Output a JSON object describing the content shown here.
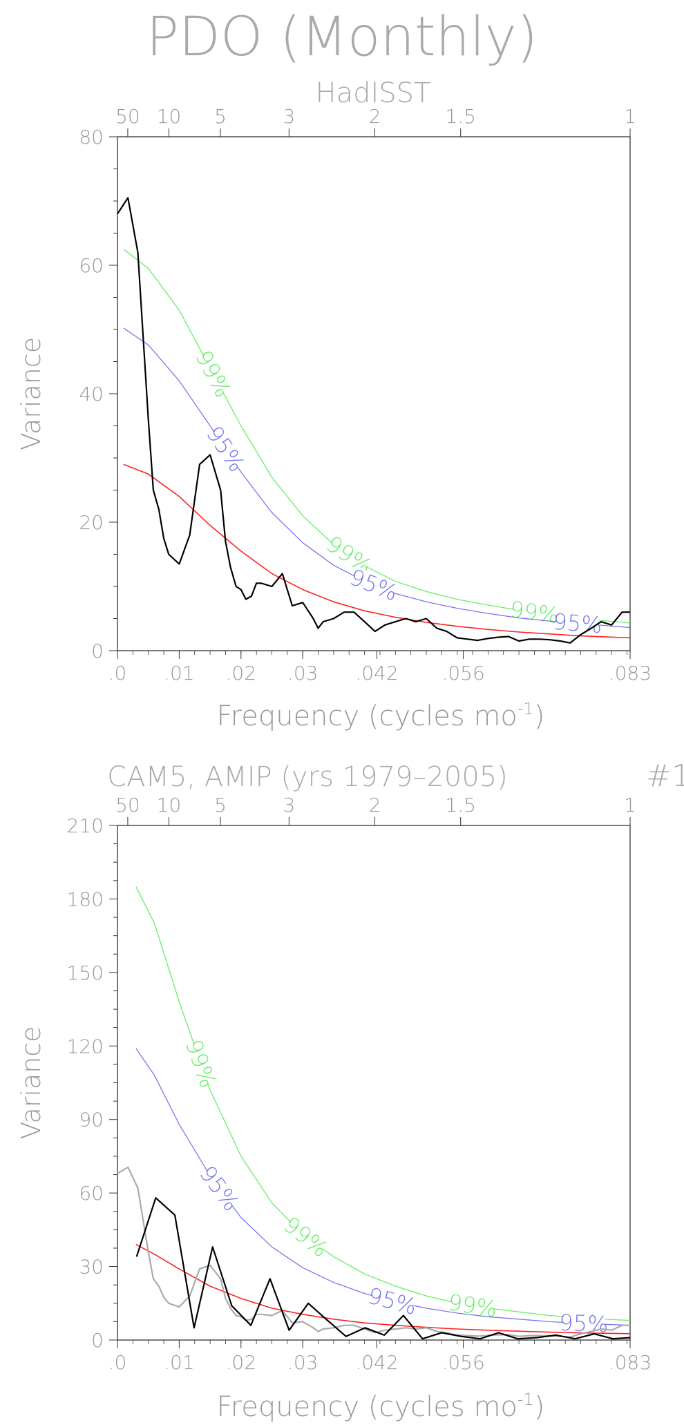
{
  "header": {
    "title": "PDO (Monthly)"
  },
  "colors": {
    "sig99": "#66ee66",
    "sig95": "#7777ee",
    "red_noise": "#ff2222",
    "obs": "#000000",
    "obs_ref": "#aaaaaa",
    "axis": "#999999"
  },
  "chart_data": [
    {
      "type": "line",
      "title": "HadISST",
      "suffix": "",
      "xlabel": "Frequency (cycles mo",
      "xlabel_sup": "-1",
      "xlabel_close": ")",
      "ylabel": "Variance",
      "xlim": [
        0,
        0.083
      ],
      "ylim": [
        0,
        80
      ],
      "x_tick_values": [
        0,
        0.01,
        0.02,
        0.03,
        0.042,
        0.056,
        0.083
      ],
      "x_tick_labels": [
        ".0",
        ".01",
        ".02",
        ".03",
        ".042",
        ".056",
        ".083"
      ],
      "top_tick_values": [
        0.00167,
        0.00833,
        0.01667,
        0.02778,
        0.04167,
        0.05556,
        0.08333
      ],
      "top_tick_labels": [
        "50",
        "10",
        "5",
        "3",
        "2",
        "1.5",
        "1"
      ],
      "y_tick_values": [
        0,
        20,
        40,
        60,
        80
      ],
      "y_tick_labels": [
        "0",
        "20",
        "40",
        "60",
        "80"
      ],
      "series": [
        {
          "role": "sig99",
          "labels": [
            "99%",
            "99%",
            "99%"
          ],
          "x": [
            0.001,
            0.005,
            0.01,
            0.015,
            0.02,
            0.025,
            0.03,
            0.035,
            0.04,
            0.045,
            0.05,
            0.055,
            0.06,
            0.065,
            0.07,
            0.075,
            0.083
          ],
          "y": [
            62.5,
            59.5,
            53.0,
            44.0,
            35.0,
            27.0,
            21.0,
            16.5,
            13.2,
            10.8,
            9.2,
            8.0,
            7.1,
            6.3,
            5.6,
            5.0,
            4.3
          ]
        },
        {
          "role": "sig95",
          "labels": [
            "95%",
            "95%",
            "95%"
          ],
          "x": [
            0.001,
            0.005,
            0.01,
            0.015,
            0.02,
            0.025,
            0.03,
            0.035,
            0.04,
            0.045,
            0.05,
            0.055,
            0.06,
            0.065,
            0.07,
            0.075,
            0.083
          ],
          "y": [
            50.2,
            47.6,
            42.0,
            35.0,
            27.8,
            21.5,
            16.8,
            13.3,
            10.8,
            8.9,
            7.6,
            6.6,
            5.8,
            5.1,
            4.6,
            4.2,
            3.6
          ]
        },
        {
          "role": "red_noise",
          "x": [
            0.001,
            0.005,
            0.01,
            0.015,
            0.02,
            0.025,
            0.03,
            0.035,
            0.04,
            0.045,
            0.05,
            0.055,
            0.06,
            0.065,
            0.07,
            0.075,
            0.083
          ],
          "y": [
            29.0,
            27.5,
            24.0,
            19.5,
            15.5,
            12.0,
            9.5,
            7.6,
            6.2,
            5.2,
            4.4,
            3.8,
            3.3,
            2.9,
            2.6,
            2.3,
            2.0
          ]
        },
        {
          "role": "obs",
          "x": [
            0.0,
            0.0017,
            0.0033,
            0.005,
            0.0058,
            0.0067,
            0.0075,
            0.0083,
            0.01,
            0.0117,
            0.0133,
            0.015,
            0.0167,
            0.0175,
            0.0183,
            0.0192,
            0.02,
            0.0208,
            0.0217,
            0.0225,
            0.0233,
            0.025,
            0.0267,
            0.0283,
            0.03,
            0.0317,
            0.0325,
            0.0333,
            0.035,
            0.0367,
            0.0383,
            0.04,
            0.0417,
            0.0433,
            0.045,
            0.0467,
            0.0483,
            0.05,
            0.0517,
            0.0533,
            0.055,
            0.0567,
            0.0583,
            0.06,
            0.0617,
            0.0633,
            0.065,
            0.0667,
            0.0683,
            0.07,
            0.0717,
            0.0733,
            0.075,
            0.0767,
            0.0783,
            0.08,
            0.0817,
            0.083
          ],
          "y": [
            68,
            70.5,
            62,
            36,
            25,
            22,
            17.5,
            15,
            13.5,
            18,
            29,
            30.5,
            25,
            17,
            13,
            10,
            9.5,
            8,
            8.5,
            10.5,
            10.5,
            10,
            12,
            7,
            7.5,
            5,
            3.5,
            4.5,
            5,
            6,
            6,
            4.5,
            3,
            4,
            4.5,
            5,
            4.5,
            5,
            3.5,
            3,
            2,
            1.8,
            1.6,
            1.9,
            2.1,
            2.2,
            1.5,
            1.8,
            1.8,
            1.7,
            1.5,
            1.2,
            2.5,
            3.5,
            4.5,
            4.0,
            6.0,
            6.0
          ]
        }
      ]
    },
    {
      "type": "line",
      "title": "CAM5, AMIP (yrs 1979–2005)",
      "suffix": "#1",
      "xlabel": "Frequency (cycles mo",
      "xlabel_sup": "-1",
      "xlabel_close": ")",
      "ylabel": "Variance",
      "xlim": [
        0,
        0.083
      ],
      "ylim": [
        0,
        210
      ],
      "x_tick_values": [
        0,
        0.01,
        0.02,
        0.03,
        0.042,
        0.056,
        0.083
      ],
      "x_tick_labels": [
        ".0",
        ".01",
        ".02",
        ".03",
        ".042",
        ".056",
        ".083"
      ],
      "top_tick_values": [
        0.00167,
        0.00833,
        0.01667,
        0.02778,
        0.04167,
        0.05556,
        0.08333
      ],
      "top_tick_labels": [
        "50",
        "10",
        "5",
        "3",
        "2",
        "1.5",
        "1"
      ],
      "y_tick_values": [
        0,
        30,
        60,
        90,
        120,
        150,
        180,
        210
      ],
      "y_tick_labels": [
        "0",
        "30",
        "60",
        "90",
        "120",
        "150",
        "180",
        "210"
      ],
      "series": [
        {
          "role": "sig99",
          "labels": [
            "99%",
            "99%",
            "99%"
          ],
          "x": [
            0.003,
            0.006,
            0.01,
            0.015,
            0.02,
            0.025,
            0.03,
            0.035,
            0.04,
            0.045,
            0.05,
            0.055,
            0.06,
            0.065,
            0.07,
            0.075,
            0.083
          ],
          "y": [
            185,
            170,
            138,
            102,
            75,
            56,
            43,
            34,
            27,
            22,
            18,
            15,
            13,
            11.5,
            10,
            9,
            8
          ]
        },
        {
          "role": "sig95",
          "labels": [
            "95%",
            "95%",
            "95%"
          ],
          "x": [
            0.003,
            0.006,
            0.01,
            0.015,
            0.02,
            0.025,
            0.03,
            0.035,
            0.04,
            0.045,
            0.05,
            0.055,
            0.06,
            0.065,
            0.07,
            0.075,
            0.083
          ],
          "y": [
            119,
            108,
            88,
            67,
            50,
            38,
            29.5,
            23.5,
            19,
            15.5,
            13,
            11,
            9.5,
            8.5,
            7.5,
            6.8,
            6
          ]
        },
        {
          "role": "red_noise",
          "x": [
            0.003,
            0.006,
            0.01,
            0.015,
            0.02,
            0.025,
            0.03,
            0.035,
            0.04,
            0.045,
            0.05,
            0.055,
            0.06,
            0.065,
            0.07,
            0.075,
            0.083
          ],
          "y": [
            39,
            35,
            29,
            22,
            17,
            13,
            10.5,
            8.5,
            7,
            6,
            5.2,
            4.5,
            4,
            3.6,
            3.2,
            2.9,
            2.6
          ]
        },
        {
          "role": "obs_ref",
          "x": [
            0.0,
            0.0017,
            0.0033,
            0.005,
            0.0058,
            0.0067,
            0.0075,
            0.0083,
            0.01,
            0.0117,
            0.0133,
            0.015,
            0.0167,
            0.0175,
            0.0183,
            0.0192,
            0.02,
            0.0208,
            0.0217,
            0.0225,
            0.0233,
            0.025,
            0.0267,
            0.0283,
            0.03,
            0.0317,
            0.0325,
            0.0333,
            0.035,
            0.0367,
            0.0383,
            0.04,
            0.0417,
            0.0433,
            0.045,
            0.0467,
            0.0483,
            0.05,
            0.0517,
            0.0533,
            0.055,
            0.0567,
            0.0583,
            0.06,
            0.0617,
            0.0633,
            0.065,
            0.0667,
            0.0683,
            0.07,
            0.0717,
            0.0733,
            0.075,
            0.0767,
            0.0783,
            0.08,
            0.0817,
            0.083
          ],
          "y": [
            68,
            70.5,
            62,
            36,
            25,
            22,
            17.5,
            15,
            13.5,
            18,
            29,
            30.5,
            25,
            17,
            13,
            10,
            9.5,
            8,
            8.5,
            10.5,
            10.5,
            10,
            12,
            7,
            7.5,
            5,
            3.5,
            4.5,
            5,
            6,
            6,
            4.5,
            3,
            4,
            4.5,
            5,
            4.5,
            5,
            3.5,
            3,
            2,
            1.8,
            1.6,
            1.9,
            2.1,
            2.2,
            1.5,
            1.8,
            1.8,
            1.7,
            1.5,
            1.2,
            2.5,
            3.5,
            4.5,
            4.0,
            6.0,
            6.0
          ]
        },
        {
          "role": "obs",
          "x": [
            0.0031,
            0.0062,
            0.0093,
            0.0124,
            0.0154,
            0.0185,
            0.0216,
            0.0247,
            0.0278,
            0.0309,
            0.034,
            0.037,
            0.0401,
            0.0432,
            0.0463,
            0.0494,
            0.0525,
            0.0556,
            0.0587,
            0.0617,
            0.0648,
            0.0679,
            0.071,
            0.0741,
            0.0772,
            0.0802,
            0.083
          ],
          "y": [
            34,
            58,
            51,
            5,
            38,
            14,
            6,
            25,
            4,
            15,
            8,
            1.5,
            5,
            2,
            10,
            0.5,
            3,
            1.5,
            0.5,
            3,
            0.5,
            1,
            2,
            0.5,
            2.5,
            0.5,
            1
          ]
        }
      ]
    }
  ]
}
